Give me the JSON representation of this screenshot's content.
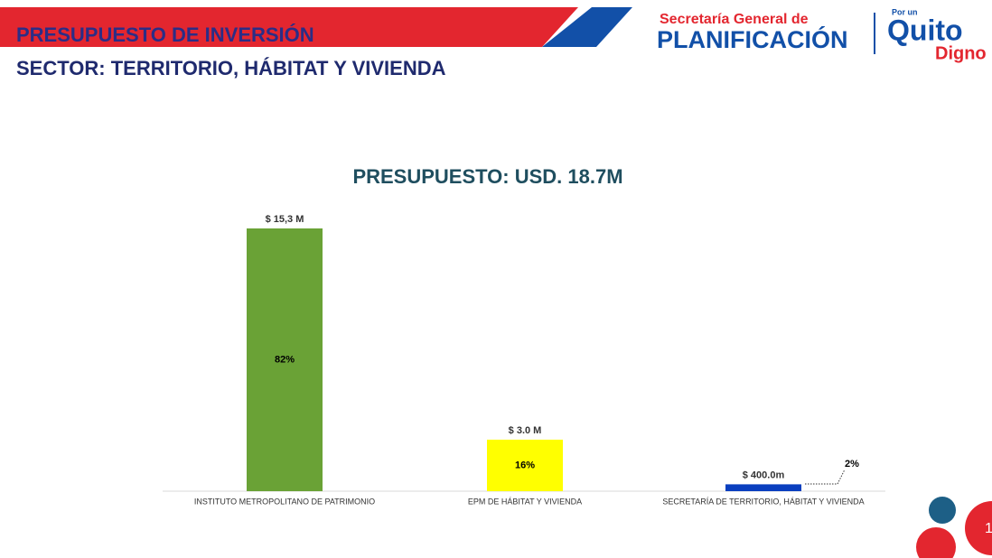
{
  "header": {
    "title": "PRESUPUESTO DE INVERSIÓN",
    "subtitle": "SECTOR: TERRITORIO, HÁBITAT Y VIVIENDA",
    "logo_top": "Secretaría General de",
    "logo_main": "PLANIFICACIÓN",
    "logo_small": "Por un",
    "logo_quito": "Quito",
    "logo_digno": "Digno",
    "page": "1"
  },
  "chart_data": {
    "type": "bar",
    "title": "PRESUPUESTO: USD. 18.7M",
    "categories": [
      "INSTITUTO METROPOLITANO DE PATRIMONIO",
      "EPM DE HÁBITAT Y VIVIENDA",
      "SECRETARÍA DE TERRITORIO, HÁBITAT Y VIVIENDA"
    ],
    "values": [
      15.3,
      3.0,
      0.4
    ],
    "value_labels": [
      "$ 15,3 M",
      "$ 3.0 M",
      "$ 400.0m"
    ],
    "share_labels": [
      "82%",
      "16%",
      "2%"
    ],
    "colors": [
      "#6aa236",
      "#ffff00",
      "#0a3fbf"
    ]
  }
}
